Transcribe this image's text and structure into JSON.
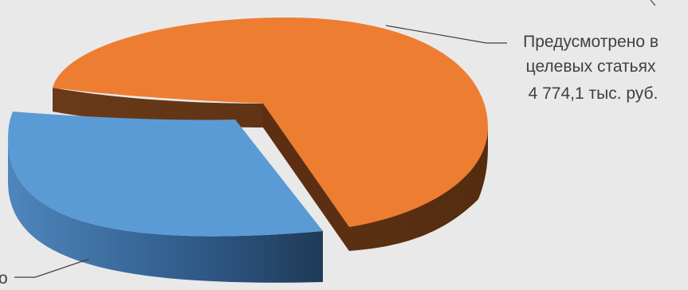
{
  "chart_data": {
    "type": "pie",
    "style": "3d-exploded",
    "slices": [
      {
        "name": "Предусмотрено в целевых статьях",
        "value": 4774.1,
        "label_lines": [
          "Предусмотрено в",
          "целевых статьях",
          "4 774,1 тыс. руб."
        ],
        "color": "#ed7d31",
        "side_color": "#5f3314"
      },
      {
        "name": "",
        "value": null,
        "label_lines": [
          "о"
        ],
        "color": "#5b9bd5",
        "side_color": "#3a6a9c"
      }
    ],
    "colors": {
      "background": "#e9e9e9",
      "leader_line": "#404040",
      "label_text": "#404040"
    }
  }
}
